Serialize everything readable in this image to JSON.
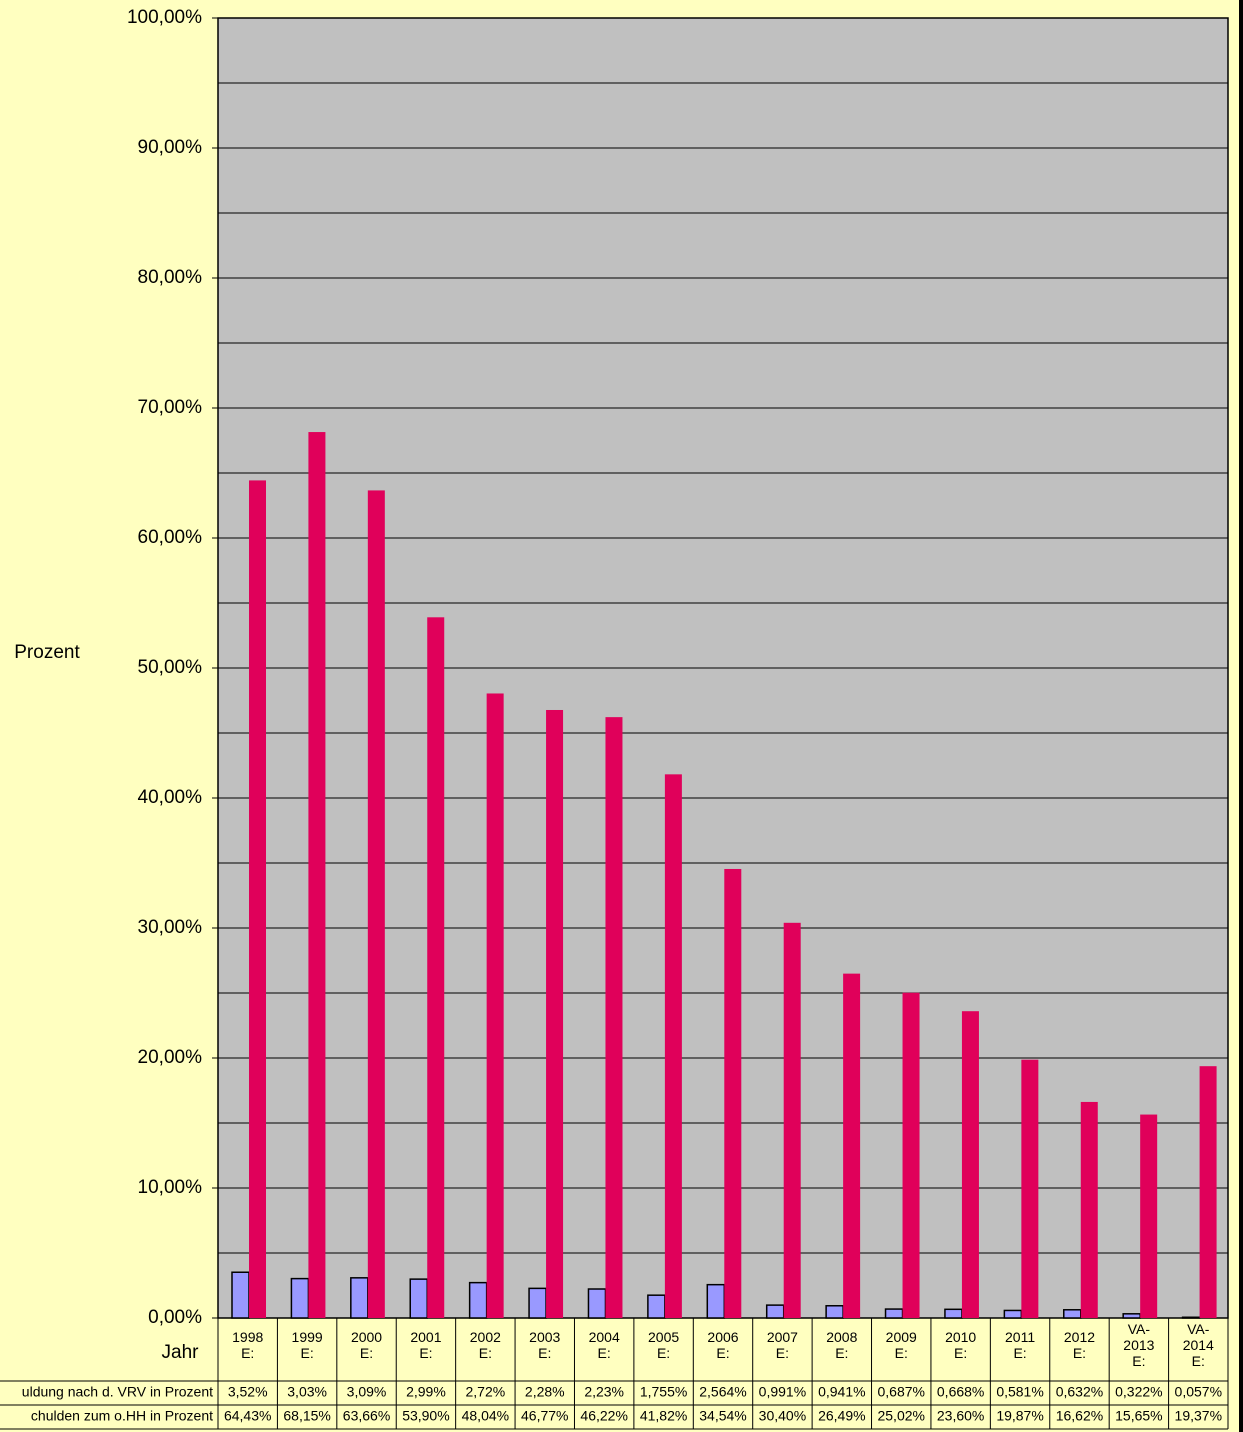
{
  "chart_data": {
    "type": "bar",
    "y_label": "Prozent",
    "x_label": "Jahr",
    "categories": [
      "1998\nE:",
      "1999\nE:",
      "2000\nE:",
      "2001\nE:",
      "2002\nE:",
      "2003\nE:",
      "2004\nE:",
      "2005\nE:",
      "2006\nE:",
      "2007\nE:",
      "2008\nE:",
      "2009\nE:",
      "2010\nE:",
      "2011\nE:",
      "2012\nE:",
      "VA-\n2013\nE:",
      "VA-\n2014\nE:"
    ],
    "series": [
      {
        "name": "uldung nach d. VRV in Prozent",
        "color": "#9999ff",
        "values": [
          3.52,
          3.03,
          3.09,
          2.99,
          2.72,
          2.28,
          2.23,
          1.755,
          2.564,
          0.991,
          0.941,
          0.687,
          0.668,
          0.581,
          0.632,
          0.322,
          0.057
        ],
        "value_labels": [
          "3,52%",
          "3,03%",
          "3,09%",
          "2,99%",
          "2,72%",
          "2,28%",
          "2,23%",
          "1,755%",
          "2,564%",
          "0,991%",
          "0,941%",
          "0,687%",
          "0,668%",
          "0,581%",
          "0,632%",
          "0,322%",
          "0,057%"
        ]
      },
      {
        "name": "chulden zum o.HH in Prozent",
        "color": "#e0005a",
        "values": [
          64.43,
          68.15,
          63.66,
          53.9,
          48.04,
          46.77,
          46.22,
          41.82,
          34.54,
          30.4,
          26.49,
          25.02,
          23.6,
          19.87,
          16.62,
          15.65,
          19.37
        ],
        "value_labels": [
          "64,43%",
          "68,15%",
          "63,66%",
          "53,90%",
          "48,04%",
          "46,77%",
          "46,22%",
          "41,82%",
          "34,54%",
          "30,40%",
          "26,49%",
          "25,02%",
          "23,60%",
          "19,87%",
          "16,62%",
          "15,65%",
          "19,37%"
        ]
      }
    ],
    "ylim": [
      0,
      100
    ],
    "yticks": [
      {
        "value": 0,
        "label": "0,00%"
      },
      {
        "value": 10,
        "label": "10,00%"
      },
      {
        "value": 20,
        "label": "20,00%"
      },
      {
        "value": 30,
        "label": "30,00%"
      },
      {
        "value": 40,
        "label": "40,00%"
      },
      {
        "value": 50,
        "label": "50,00%"
      },
      {
        "value": 60,
        "label": "60,00%"
      },
      {
        "value": 70,
        "label": "70,00%"
      },
      {
        "value": 80,
        "label": "80,00%"
      },
      {
        "value": 90,
        "label": "90,00%"
      },
      {
        "value": 100,
        "label": "100,00%"
      }
    ],
    "minor_yticks": [
      5,
      15,
      25,
      35,
      45,
      55,
      65,
      75,
      85,
      95
    ],
    "grid": true,
    "plot_color": "#c0c0c0"
  }
}
